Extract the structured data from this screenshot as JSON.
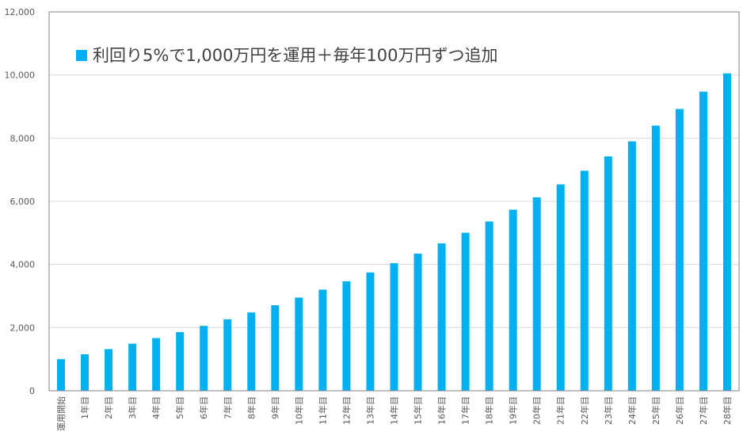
{
  "chart_data": {
    "type": "bar",
    "title": "",
    "xlabel": "",
    "ylabel": "",
    "ylim": [
      0,
      12000
    ],
    "yticks": [
      0,
      2000,
      4000,
      6000,
      8000,
      10000,
      12000
    ],
    "ytick_labels": [
      "0",
      "2,000",
      "4,000",
      "6,000",
      "8,000",
      "10,000",
      "12,000"
    ],
    "grid": true,
    "legend_position": "top-left",
    "categories": [
      "運用開始",
      "1年目",
      "2年目",
      "3年目",
      "4年目",
      "5年目",
      "6年目",
      "7年目",
      "8年目",
      "9年目",
      "10年目",
      "11年目",
      "12年目",
      "13年目",
      "14年目",
      "15年目",
      "16年目",
      "17年目",
      "18年目",
      "19年目",
      "20年目",
      "21年目",
      "22年目",
      "23年目",
      "24年目",
      "25年目",
      "26年目",
      "27年目",
      "28年目"
    ],
    "series": [
      {
        "name": "利回り5%で1,000万円を運用＋毎年100万円ずつ追加",
        "color": "#00B0F0",
        "values": [
          1000,
          1155,
          1318,
          1489,
          1668,
          1856,
          2054,
          2262,
          2480,
          2709,
          2950,
          3202,
          3467,
          3746,
          4038,
          4345,
          4667,
          5005,
          5361,
          5734,
          6125,
          6536,
          6968,
          7422,
          7898,
          8398,
          8923,
          9474,
          10052
        ]
      }
    ]
  }
}
